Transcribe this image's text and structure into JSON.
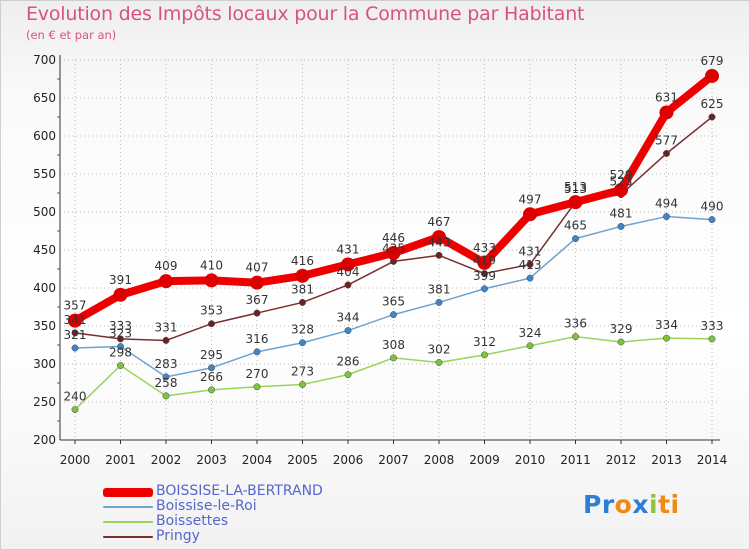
{
  "title": "Evolution des Impôts locaux pour la Commune par Habitant",
  "subtitle": "(en € et par an)",
  "brand": {
    "logo_parts": [
      {
        "text": "Pr",
        "color": "#2b7fd4"
      },
      {
        "text": "o",
        "color": "#f08a16"
      },
      {
        "text": "x",
        "color": "#2b7fd4"
      },
      {
        "text": "i",
        "color": "#8cc63f"
      },
      {
        "text": "ti",
        "color": "#f08a16"
      }
    ]
  },
  "chart_data": {
    "type": "line",
    "title": "Evolution des Impôts locaux pour la Commune par Habitant",
    "xlabel": "",
    "ylabel": "(en € et par an)",
    "categories": [
      "2000",
      "2001",
      "2002",
      "2003",
      "2004",
      "2005",
      "2006",
      "2007",
      "2008",
      "2009",
      "2010",
      "2011",
      "2012",
      "2013",
      "2014"
    ],
    "ylim": [
      200,
      700
    ],
    "yticks": [
      200,
      250,
      300,
      350,
      400,
      450,
      500,
      550,
      600,
      650,
      700
    ],
    "grid": true,
    "series": [
      {
        "name": "BOISSISE-LA-BERTRAND",
        "color": "#ee0000",
        "marker": "#dd0000",
        "emphasis": true,
        "values": [
          357,
          391,
          409,
          410,
          407,
          416,
          431,
          446,
          467,
          433,
          497,
          513,
          529,
          631,
          679
        ]
      },
      {
        "name": "Boissise-le-Roi",
        "color": "#6ea3d0",
        "marker": "#3f86c8",
        "emphasis": false,
        "values": [
          321,
          323,
          283,
          295,
          316,
          328,
          344,
          365,
          381,
          399,
          413,
          465,
          481,
          494,
          490
        ]
      },
      {
        "name": "Boissettes",
        "color": "#99d45a",
        "marker": "#7cc43d",
        "emphasis": false,
        "values": [
          240,
          298,
          258,
          266,
          270,
          273,
          286,
          308,
          302,
          312,
          324,
          336,
          329,
          334,
          333
        ]
      },
      {
        "name": "Pringy",
        "color": "#7a2e2e",
        "marker": "#6b2222",
        "emphasis": false,
        "values": [
          341,
          333,
          331,
          353,
          367,
          381,
          404,
          435,
          443,
          419,
          431,
          513,
          523,
          577,
          625
        ]
      }
    ]
  }
}
